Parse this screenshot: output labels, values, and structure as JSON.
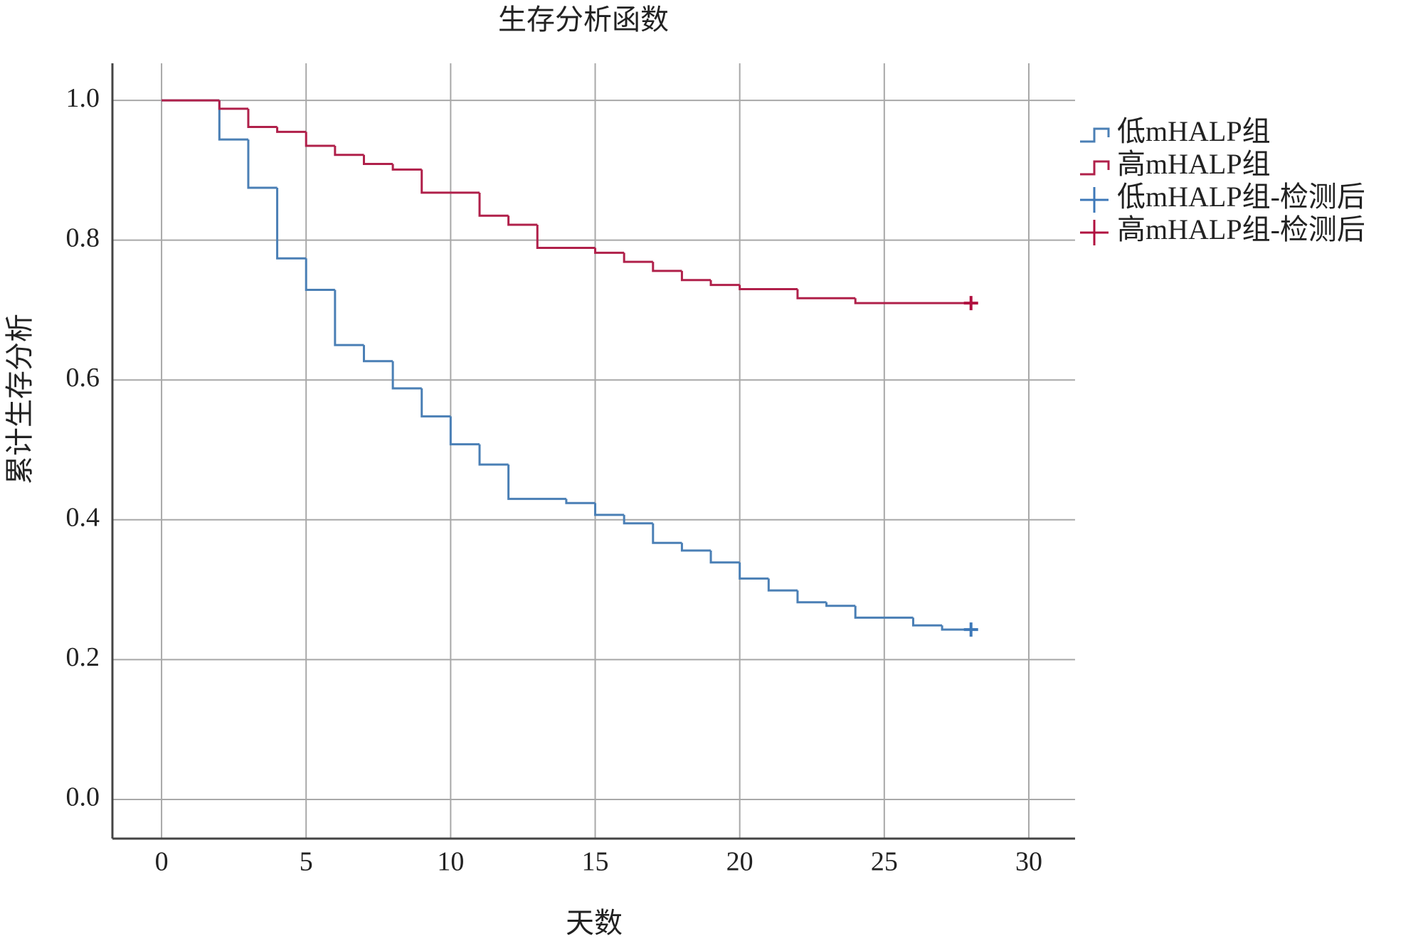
{
  "chart_data": {
    "type": "step",
    "title": "生存分析函数",
    "xlabel": "天数",
    "ylabel": "累计生存分析",
    "xlim": [
      -1.7,
      31.6
    ],
    "ylim": [
      -0.056,
      1.053
    ],
    "xticks": [
      0,
      5,
      10,
      15,
      20,
      25,
      30
    ],
    "yticks": [
      {
        "value": 0,
        "label": "0.0"
      },
      0.2,
      0.4,
      0.6,
      0.8,
      {
        "value": 1,
        "label": "1.0"
      }
    ],
    "grid": true,
    "legend": "right",
    "series": [
      {
        "name": "低mHALP组",
        "color": "#4a7fb5",
        "marker": "step",
        "x": [
          0,
          2,
          3,
          4,
          5,
          6,
          7,
          8,
          9,
          10,
          11,
          12,
          14,
          15,
          16,
          17,
          18,
          19,
          20,
          21,
          22,
          23,
          24,
          26,
          27,
          28
        ],
        "values": [
          1.0,
          0.944,
          0.875,
          0.774,
          0.729,
          0.65,
          0.627,
          0.588,
          0.548,
          0.508,
          0.479,
          0.43,
          0.424,
          0.407,
          0.395,
          0.367,
          0.356,
          0.339,
          0.316,
          0.299,
          0.282,
          0.277,
          0.26,
          0.249,
          0.243,
          0.243
        ]
      },
      {
        "name": "高mHALP组",
        "color": "#b0204a",
        "marker": "step",
        "x": [
          0,
          2,
          3,
          4,
          5,
          6,
          7,
          8,
          9,
          11,
          12,
          13,
          15,
          16,
          17,
          18,
          19,
          20,
          22,
          24,
          28
        ],
        "values": [
          1.0,
          0.988,
          0.962,
          0.955,
          0.935,
          0.922,
          0.909,
          0.901,
          0.868,
          0.835,
          0.822,
          0.789,
          0.782,
          0.769,
          0.756,
          0.743,
          0.736,
          0.73,
          0.717,
          0.71,
          0.71
        ]
      },
      {
        "name": "低mHALP组-检测后",
        "color": "#3d78b8",
        "marker": "+",
        "x": [
          28
        ],
        "values": [
          0.243
        ]
      },
      {
        "name": "高mHALP组-检测后",
        "color": "#b0103f",
        "marker": "+",
        "x": [
          28
        ],
        "values": [
          0.71
        ]
      }
    ]
  }
}
